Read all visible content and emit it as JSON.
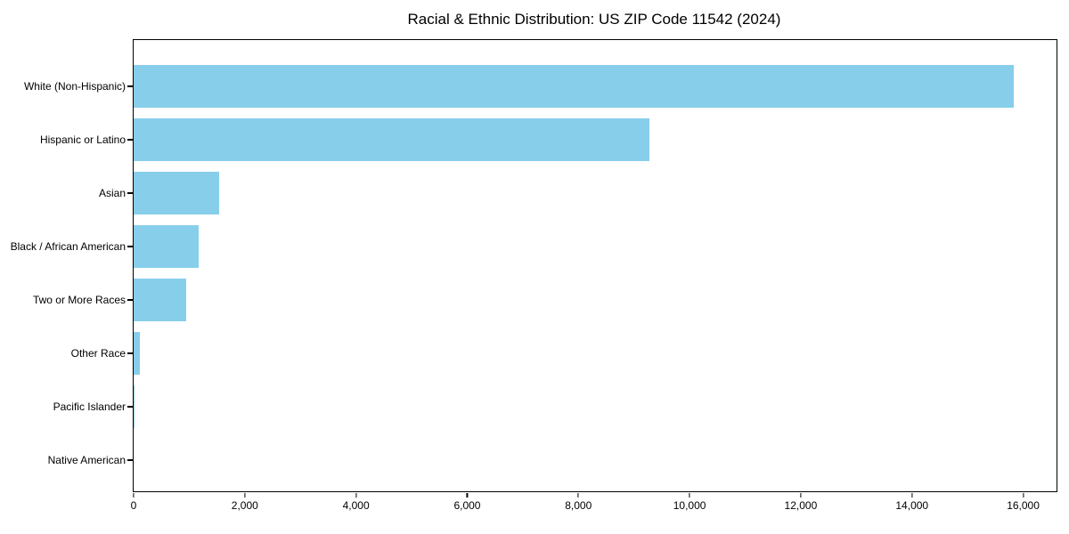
{
  "page": {
    "background_color": "#ffffff"
  },
  "chart_data": {
    "type": "bar",
    "orientation": "horizontal",
    "title": "Racial & Ethnic Distribution: US ZIP Code 11542 (2024)",
    "categories": [
      "White (Non-Hispanic)",
      "Hispanic or Latino",
      "Asian",
      "Black / African American",
      "Two or More Races",
      "Other Race",
      "Pacific Islander",
      "Native American"
    ],
    "values": [
      15830,
      9280,
      1540,
      1170,
      940,
      120,
      15,
      0
    ],
    "xlabel": "",
    "ylabel": "",
    "xlim": [
      0,
      16600
    ],
    "xticks": [
      {
        "value": 0,
        "label": "0"
      },
      {
        "value": 2000,
        "label": "2,000"
      },
      {
        "value": 4000,
        "label": "4,000"
      },
      {
        "value": 6000,
        "label": "6,000"
      },
      {
        "value": 8000,
        "label": "8,000"
      },
      {
        "value": 10000,
        "label": "10,000"
      },
      {
        "value": 12000,
        "label": "12,000"
      },
      {
        "value": 14000,
        "label": "14,000"
      },
      {
        "value": 16000,
        "label": "16,000"
      }
    ],
    "bar_color": "#87CEEB",
    "axis_color": "#000000",
    "grid": false,
    "legend": null
  }
}
